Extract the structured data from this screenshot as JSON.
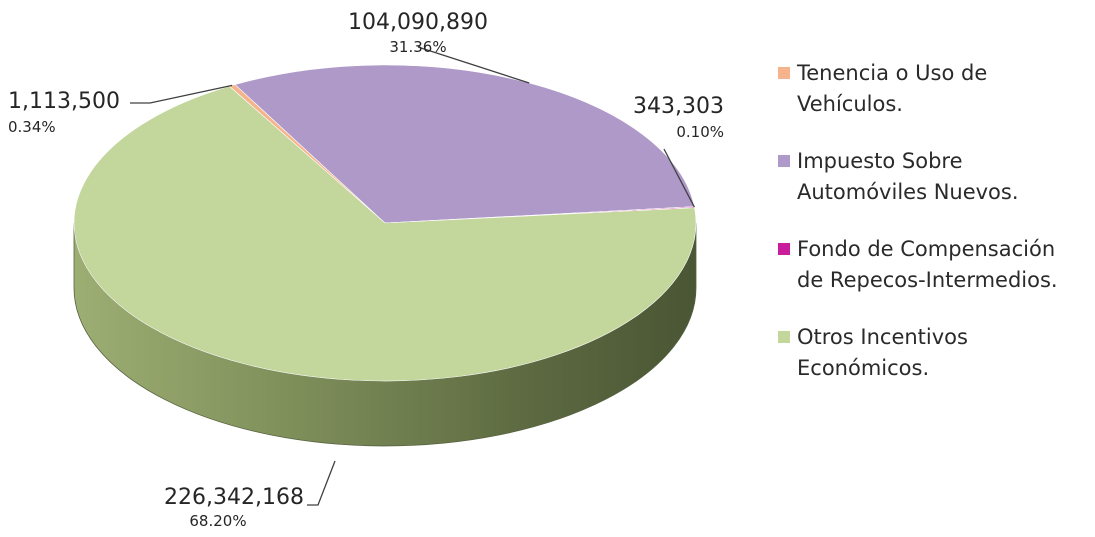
{
  "chart_data": {
    "type": "pie",
    "title": "",
    "legend_position": "right",
    "slices": [
      {
        "label": "Tenencia o Uso de Vehículos.",
        "value": 1113500,
        "value_label": "1,113,500",
        "percent_label": "0.34%",
        "color": "#F5B48C"
      },
      {
        "label": "Impuesto Sobre Automóviles Nuevos.",
        "value": 104090890,
        "value_label": "104,090,890",
        "percent_label": "31.36%",
        "color": "#AE99C8"
      },
      {
        "label": "Fondo de Compensación de Repecos-Intermedios.",
        "value": 343303,
        "value_label": "343,303",
        "percent_label": "0.10%",
        "color": "#C81E9E"
      },
      {
        "label": "Otros Incentivos Económicos.",
        "value": 226342168,
        "value_label": "226,342,168",
        "percent_label": "68.20%",
        "color": "#C3D69B"
      }
    ]
  }
}
